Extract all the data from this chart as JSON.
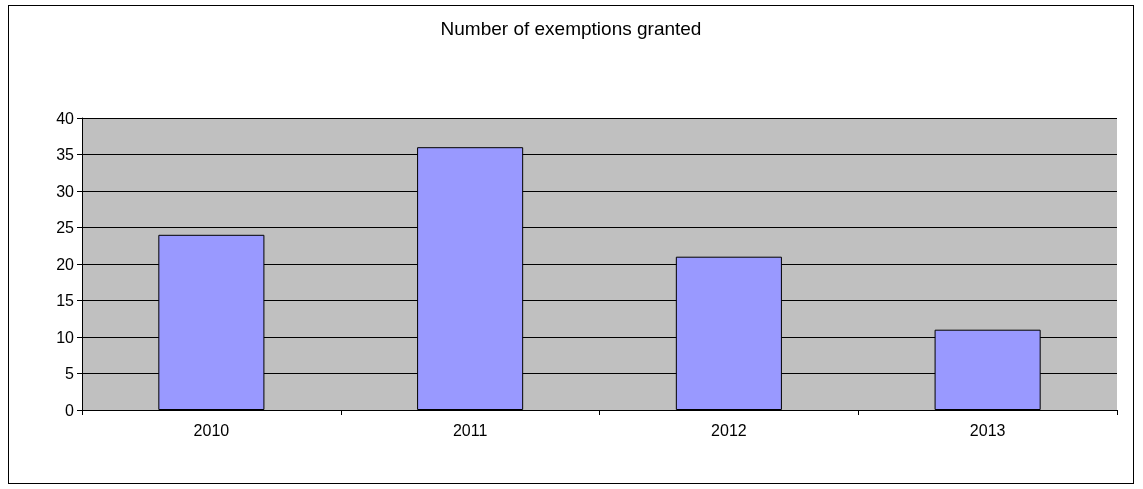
{
  "chart_data": {
    "type": "bar",
    "title": "Number of exemptions granted",
    "categories": [
      "2010",
      "2011",
      "2012",
      "2013"
    ],
    "values": [
      24,
      36,
      21,
      11
    ],
    "color": "#9999ff",
    "ylim": [
      0,
      40
    ],
    "yticks": [
      0,
      5,
      10,
      15,
      20,
      25,
      30,
      35,
      40
    ],
    "grid": "y"
  }
}
